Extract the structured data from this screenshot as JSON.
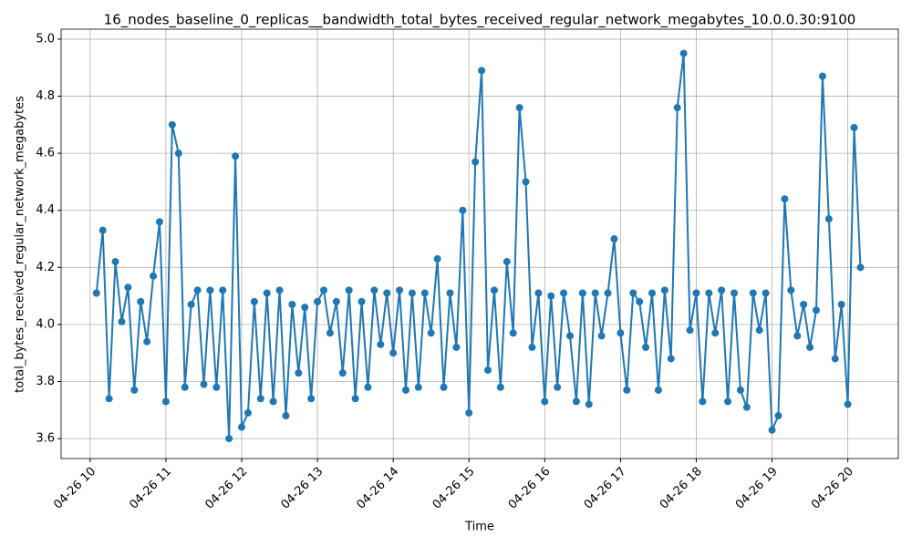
{
  "chart_data": {
    "type": "line",
    "title": "16_nodes_baseline_0_replicas__bandwidth_total_bytes_received_regular_network_megabytes_10.0.0.30:9100",
    "xlabel": "Time",
    "ylabel": "total_bytes_received_regular_network_megabytes",
    "x": [
      "04-26 10:05",
      "04-26 10:10",
      "04-26 10:15",
      "04-26 10:20",
      "04-26 10:25",
      "04-26 10:30",
      "04-26 10:35",
      "04-26 10:40",
      "04-26 10:45",
      "04-26 10:50",
      "04-26 10:55",
      "04-26 11:00",
      "04-26 11:05",
      "04-26 11:10",
      "04-26 11:15",
      "04-26 11:20",
      "04-26 11:25",
      "04-26 11:30",
      "04-26 11:35",
      "04-26 11:40",
      "04-26 11:45",
      "04-26 11:50",
      "04-26 11:55",
      "04-26 12:00",
      "04-26 12:05",
      "04-26 12:10",
      "04-26 12:15",
      "04-26 12:20",
      "04-26 12:25",
      "04-26 12:30",
      "04-26 12:35",
      "04-26 12:40",
      "04-26 12:45",
      "04-26 12:50",
      "04-26 12:55",
      "04-26 13:00",
      "04-26 13:05",
      "04-26 13:10",
      "04-26 13:15",
      "04-26 13:20",
      "04-26 13:25",
      "04-26 13:30",
      "04-26 13:35",
      "04-26 13:40",
      "04-26 13:45",
      "04-26 13:50",
      "04-26 13:55",
      "04-26 14:00",
      "04-26 14:05",
      "04-26 14:10",
      "04-26 14:15",
      "04-26 14:20",
      "04-26 14:25",
      "04-26 14:30",
      "04-26 14:35",
      "04-26 14:40",
      "04-26 14:45",
      "04-26 14:50",
      "04-26 14:55",
      "04-26 15:00",
      "04-26 15:05",
      "04-26 15:10",
      "04-26 15:15",
      "04-26 15:20",
      "04-26 15:25",
      "04-26 15:30",
      "04-26 15:35",
      "04-26 15:40",
      "04-26 15:45",
      "04-26 15:50",
      "04-26 15:55",
      "04-26 16:00",
      "04-26 16:05",
      "04-26 16:10",
      "04-26 16:15",
      "04-26 16:20",
      "04-26 16:25",
      "04-26 16:30",
      "04-26 16:35",
      "04-26 16:40",
      "04-26 16:45",
      "04-26 16:50",
      "04-26 16:55",
      "04-26 17:00",
      "04-26 17:05",
      "04-26 17:10",
      "04-26 17:15",
      "04-26 17:20",
      "04-26 17:25",
      "04-26 17:30",
      "04-26 17:35",
      "04-26 17:40",
      "04-26 17:45",
      "04-26 17:50",
      "04-26 17:55",
      "04-26 18:00",
      "04-26 18:05",
      "04-26 18:10",
      "04-26 18:15",
      "04-26 18:20",
      "04-26 18:25",
      "04-26 18:30",
      "04-26 18:35",
      "04-26 18:40",
      "04-26 18:45",
      "04-26 18:50",
      "04-26 18:55",
      "04-26 19:00",
      "04-26 19:05",
      "04-26 19:10",
      "04-26 19:15",
      "04-26 19:20",
      "04-26 19:25",
      "04-26 19:30",
      "04-26 19:35",
      "04-26 19:40",
      "04-26 19:45",
      "04-26 19:50",
      "04-26 19:55",
      "04-26 20:00",
      "04-26 20:05",
      "04-26 20:10"
    ],
    "series": [
      {
        "color": "#1f77b4",
        "values": [
          4.11,
          4.33,
          3.74,
          4.22,
          4.01,
          4.13,
          3.77,
          4.08,
          3.94,
          4.17,
          4.36,
          3.73,
          4.7,
          4.6,
          3.78,
          4.07,
          4.12,
          3.79,
          4.12,
          3.78,
          4.12,
          3.6,
          4.59,
          3.64,
          3.69,
          4.08,
          3.74,
          4.11,
          3.73,
          4.12,
          3.68,
          4.07,
          3.83,
          4.06,
          3.74,
          4.08,
          4.12,
          3.97,
          4.08,
          3.83,
          4.12,
          3.74,
          4.08,
          3.78,
          4.12,
          3.93,
          4.11,
          3.9,
          4.12,
          3.77,
          4.11,
          3.78,
          4.11,
          3.97,
          4.23,
          3.78,
          4.11,
          3.92,
          4.4,
          3.69,
          4.57,
          4.89,
          3.84,
          4.12,
          3.78,
          4.22,
          3.97,
          4.76,
          4.5,
          3.92,
          4.11,
          3.73,
          4.1,
          3.78,
          4.11,
          3.96,
          3.73,
          4.11,
          3.72,
          4.11,
          3.96,
          4.11,
          4.3,
          3.97,
          3.77,
          4.11,
          4.08,
          3.92,
          4.11,
          3.77,
          4.12,
          3.88,
          4.76,
          4.95,
          3.98,
          4.11,
          3.73,
          4.11,
          3.97,
          4.12,
          3.73,
          4.11,
          3.77,
          3.71,
          4.11,
          3.98,
          4.11,
          3.63,
          3.68,
          4.44,
          4.12,
          3.96,
          4.07,
          3.92,
          4.05,
          4.87,
          4.37,
          3.88,
          4.07,
          3.72,
          4.69,
          4.2
        ]
      }
    ],
    "xlim": [
      "04-26 09:37",
      "04-26 20:40"
    ],
    "xticks": [
      "04-26 10",
      "04-26 11",
      "04-26 12",
      "04-26 13",
      "04-26 14",
      "04-26 15",
      "04-26 16",
      "04-26 17",
      "04-26 18",
      "04-26 19",
      "04-26 20"
    ],
    "ylim": [
      3.53,
      5.035
    ],
    "yticks": [
      3.6,
      3.8,
      {
        "value": 4,
        "label": "4.0"
      },
      4.2,
      4.4,
      4.6,
      4.8,
      {
        "value": 5,
        "label": "5.0"
      }
    ],
    "grid": true
  }
}
